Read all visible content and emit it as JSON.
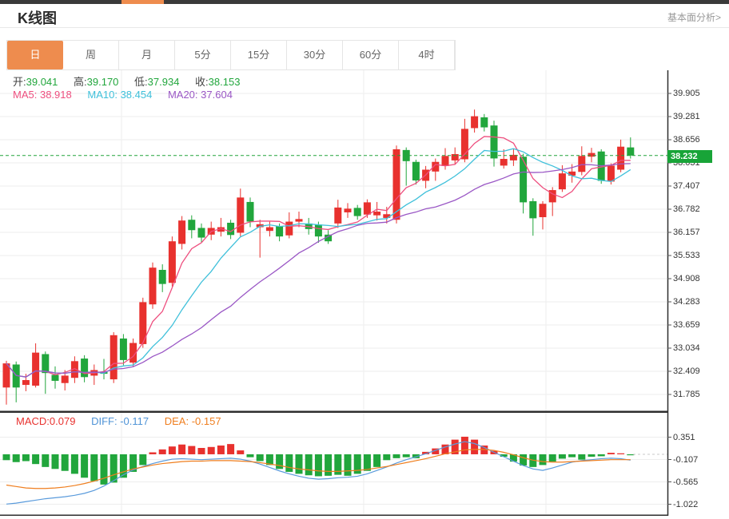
{
  "topbar": {
    "indicator_color": "#ee8c4e",
    "bar_color": "#3a3a3a"
  },
  "header": {
    "title": "K线图",
    "link": "基本面分析>"
  },
  "tabs": {
    "items": [
      "日",
      "周",
      "月",
      "5分",
      "15分",
      "30分",
      "60分",
      "4时"
    ],
    "active_index": 0,
    "active_label": "日"
  },
  "readout": {
    "open_label": "开:",
    "open_value": "39.041",
    "high_label": "高:",
    "high_value": "39.170",
    "low_label": "低:",
    "low_value": "37.934",
    "close_label": "收:",
    "close_value": "38.153",
    "ma5_label": "MA5:",
    "ma5_value": "38.918",
    "ma10_label": "MA10:",
    "ma10_value": "38.454",
    "ma20_label": "MA20:",
    "ma20_value": "37.604"
  },
  "macd_readout": {
    "macd_label": "MACD:",
    "macd_value": "0.079",
    "diff_label": "DIFF:",
    "diff_value": "-0.117",
    "dea_label": "DEA:",
    "dea_value": "-0.157"
  },
  "current_price": {
    "value": "38.232",
    "badge_color": "#18a438"
  },
  "colors": {
    "up": "#e8312e",
    "down": "#21a63c",
    "ma5": "#ee4f7f",
    "ma10": "#3fc0da",
    "ma20": "#9a57c5",
    "diff_line": "#5a9bdc",
    "dea_line": "#ef7e1e",
    "grid": "#ededed",
    "axis": "#2e2e2e",
    "dashed_price": "#22a43c",
    "active_tab": "#ee8c4e"
  },
  "chart_data": [
    {
      "type": "candlestick",
      "title": "K线图 daily candles with MA5/MA10/MA20 overlays",
      "y_ticks": [
        39.905,
        39.281,
        38.656,
        38.031,
        37.407,
        36.782,
        36.157,
        35.533,
        34.908,
        34.283,
        33.659,
        33.034,
        32.409,
        31.785
      ],
      "y_tick_labels": [
        "39.905",
        "39.281",
        "38.656",
        "38.031",
        "37.407",
        "36.782",
        "36.157",
        "35.533",
        "34.908",
        "34.283",
        "33.659",
        "33.034",
        "32.409",
        "31.785"
      ],
      "current_price": 38.232,
      "ma_periods": [
        5,
        10,
        20
      ],
      "candles_format": [
        "open",
        "high",
        "low",
        "close"
      ],
      "candles": [
        [
          31.98,
          32.7,
          31.52,
          32.63
        ],
        [
          32.6,
          32.68,
          31.58,
          31.98
        ],
        [
          32.05,
          32.35,
          31.88,
          32.18
        ],
        [
          32.03,
          33.17,
          31.98,
          32.92
        ],
        [
          32.88,
          32.95,
          31.81,
          32.37
        ],
        [
          32.32,
          32.55,
          31.95,
          32.16
        ],
        [
          32.1,
          32.45,
          31.9,
          32.3
        ],
        [
          32.24,
          32.82,
          32.1,
          32.69
        ],
        [
          32.76,
          32.85,
          32.12,
          32.26
        ],
        [
          32.3,
          32.6,
          32.05,
          32.45
        ],
        [
          32.4,
          32.75,
          32.2,
          32.35
        ],
        [
          32.2,
          33.47,
          32.1,
          33.39
        ],
        [
          33.3,
          33.42,
          32.58,
          32.72
        ],
        [
          32.65,
          33.3,
          32.55,
          33.18
        ],
        [
          33.15,
          34.4,
          33.05,
          34.28
        ],
        [
          34.22,
          35.35,
          34.1,
          35.21
        ],
        [
          35.15,
          35.3,
          34.55,
          34.77
        ],
        [
          34.8,
          36.05,
          34.7,
          35.92
        ],
        [
          35.85,
          36.6,
          35.7,
          36.48
        ],
        [
          36.5,
          36.62,
          36.0,
          36.22
        ],
        [
          36.28,
          36.4,
          35.9,
          36.02
        ],
        [
          36.1,
          36.45,
          35.95,
          36.28
        ],
        [
          36.18,
          36.55,
          36.05,
          36.3
        ],
        [
          36.42,
          36.5,
          35.98,
          36.09
        ],
        [
          36.15,
          37.34,
          36.05,
          37.1
        ],
        [
          36.98,
          37.1,
          36.3,
          36.45
        ],
        [
          36.3,
          36.5,
          35.48,
          36.38
        ],
        [
          36.2,
          36.45,
          36.05,
          36.3
        ],
        [
          36.33,
          36.4,
          35.92,
          36.05
        ],
        [
          36.08,
          36.7,
          36.0,
          36.45
        ],
        [
          36.45,
          36.72,
          36.3,
          36.52
        ],
        [
          36.4,
          36.55,
          36.1,
          36.25
        ],
        [
          36.37,
          36.45,
          35.88,
          36.05
        ],
        [
          36.1,
          36.22,
          35.85,
          35.92
        ],
        [
          36.4,
          37.04,
          36.28,
          36.83
        ],
        [
          36.7,
          36.95,
          36.55,
          36.8
        ],
        [
          36.82,
          36.9,
          36.5,
          36.6
        ],
        [
          36.64,
          37.05,
          36.55,
          36.97
        ],
        [
          36.62,
          36.98,
          36.48,
          36.72
        ],
        [
          36.55,
          36.85,
          36.4,
          36.65
        ],
        [
          36.5,
          38.5,
          36.4,
          38.4
        ],
        [
          38.38,
          38.45,
          37.42,
          38.08
        ],
        [
          38.06,
          38.12,
          37.45,
          37.56
        ],
        [
          37.55,
          37.95,
          37.35,
          37.85
        ],
        [
          37.8,
          38.15,
          37.55,
          38.06
        ],
        [
          37.95,
          38.43,
          37.85,
          38.22
        ],
        [
          38.1,
          38.45,
          38.0,
          38.27
        ],
        [
          38.13,
          39.22,
          38.05,
          38.95
        ],
        [
          38.97,
          39.47,
          38.85,
          39.29
        ],
        [
          39.26,
          39.35,
          38.88,
          38.99
        ],
        [
          39.041,
          39.17,
          37.934,
          38.153
        ],
        [
          37.96,
          38.4,
          37.88,
          38.14
        ],
        [
          38.1,
          38.42,
          37.95,
          38.25
        ],
        [
          38.2,
          38.28,
          36.67,
          36.97
        ],
        [
          37.0,
          37.08,
          36.07,
          36.54
        ],
        [
          36.57,
          37.0,
          36.24,
          36.93
        ],
        [
          36.97,
          37.38,
          36.6,
          37.3
        ],
        [
          37.32,
          37.97,
          37.25,
          37.75
        ],
        [
          37.69,
          38.0,
          37.5,
          37.8
        ],
        [
          37.79,
          38.48,
          37.7,
          38.22
        ],
        [
          38.2,
          38.44,
          38.05,
          38.3
        ],
        [
          38.34,
          38.4,
          37.47,
          37.55
        ],
        [
          37.53,
          38.02,
          37.45,
          37.96
        ],
        [
          37.85,
          38.66,
          37.78,
          38.47
        ],
        [
          38.45,
          38.72,
          38.15,
          38.23
        ]
      ]
    },
    {
      "type": "macd",
      "title": "MACD(12,26,9) histogram with DIFF and DEA lines",
      "y_ticks": [
        0.351,
        -0.107,
        -0.565,
        -1.022
      ],
      "y_tick_labels": [
        "0.351",
        "-0.107",
        "-0.565",
        "-1.022"
      ],
      "hist": [
        -0.12,
        -0.16,
        -0.14,
        -0.2,
        -0.26,
        -0.3,
        -0.34,
        -0.4,
        -0.48,
        -0.55,
        -0.62,
        -0.58,
        -0.48,
        -0.36,
        -0.22,
        0.04,
        0.1,
        0.16,
        0.2,
        0.17,
        0.13,
        0.15,
        0.18,
        0.21,
        0.08,
        -0.06,
        -0.14,
        -0.22,
        -0.3,
        -0.36,
        -0.4,
        -0.43,
        -0.45,
        -0.44,
        -0.42,
        -0.44,
        -0.4,
        -0.34,
        -0.26,
        -0.12,
        -0.08,
        -0.06,
        -0.08,
        0.05,
        0.12,
        0.2,
        0.3,
        0.36,
        0.3,
        0.18,
        0.07,
        -0.05,
        -0.15,
        -0.23,
        -0.26,
        -0.22,
        -0.15,
        -0.09,
        -0.06,
        -0.11,
        -0.05,
        -0.04,
        0.03,
        0.02,
        -0.01
      ],
      "diff": [
        -1.02,
        -1.0,
        -0.97,
        -0.94,
        -0.91,
        -0.89,
        -0.87,
        -0.84,
        -0.8,
        -0.74,
        -0.65,
        -0.54,
        -0.42,
        -0.32,
        -0.25,
        -0.19,
        -0.14,
        -0.1,
        -0.09,
        -0.1,
        -0.11,
        -0.1,
        -0.09,
        -0.08,
        -0.1,
        -0.14,
        -0.2,
        -0.27,
        -0.34,
        -0.4,
        -0.45,
        -0.49,
        -0.51,
        -0.5,
        -0.48,
        -0.47,
        -0.45,
        -0.4,
        -0.33,
        -0.26,
        -0.18,
        -0.11,
        -0.05,
        0.01,
        0.08,
        0.15,
        0.21,
        0.26,
        0.22,
        0.14,
        0.04,
        -0.05,
        -0.14,
        -0.23,
        -0.3,
        -0.33,
        -0.28,
        -0.22,
        -0.16,
        -0.13,
        -0.11,
        -0.09,
        -0.08,
        -0.09,
        -0.12
      ],
      "dea": [
        -0.63,
        -0.66,
        -0.69,
        -0.7,
        -0.7,
        -0.69,
        -0.67,
        -0.64,
        -0.6,
        -0.55,
        -0.49,
        -0.42,
        -0.36,
        -0.3,
        -0.26,
        -0.22,
        -0.19,
        -0.17,
        -0.15,
        -0.14,
        -0.14,
        -0.13,
        -0.13,
        -0.13,
        -0.14,
        -0.15,
        -0.17,
        -0.2,
        -0.23,
        -0.27,
        -0.3,
        -0.32,
        -0.34,
        -0.35,
        -0.35,
        -0.34,
        -0.33,
        -0.31,
        -0.28,
        -0.25,
        -0.21,
        -0.17,
        -0.13,
        -0.09,
        -0.04,
        0.01,
        0.05,
        0.09,
        0.1,
        0.1,
        0.08,
        0.04,
        -0.01,
        -0.07,
        -0.12,
        -0.15,
        -0.16,
        -0.16,
        -0.15,
        -0.14,
        -0.13,
        -0.12,
        -0.11,
        -0.11,
        -0.11
      ]
    }
  ]
}
